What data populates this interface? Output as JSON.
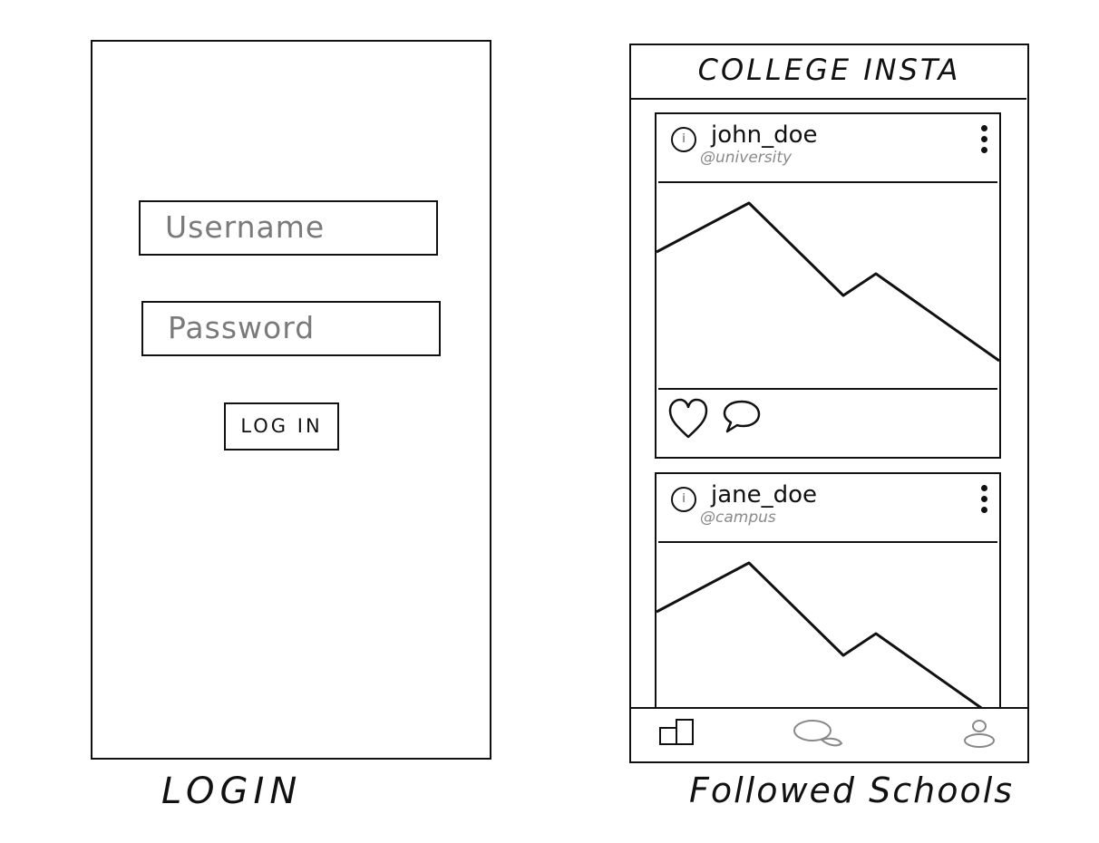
{
  "login_screen": {
    "username_placeholder": "Username",
    "password_placeholder": "Password",
    "login_button": "LOG IN",
    "caption": "LOGIN"
  },
  "feed_screen": {
    "app_title": "COLLEGE INSTA",
    "posts": [
      {
        "username": "john_doe",
        "handle": "@university"
      },
      {
        "username": "jane_doe",
        "handle": "@campus"
      }
    ],
    "icons": {
      "post_menu": "more-vertical-icon",
      "like": "heart-icon",
      "comment": "comment-icon",
      "nav": [
        "home-icon",
        "search-icon",
        "profile-icon"
      ]
    },
    "caption": "Followed Schools"
  }
}
